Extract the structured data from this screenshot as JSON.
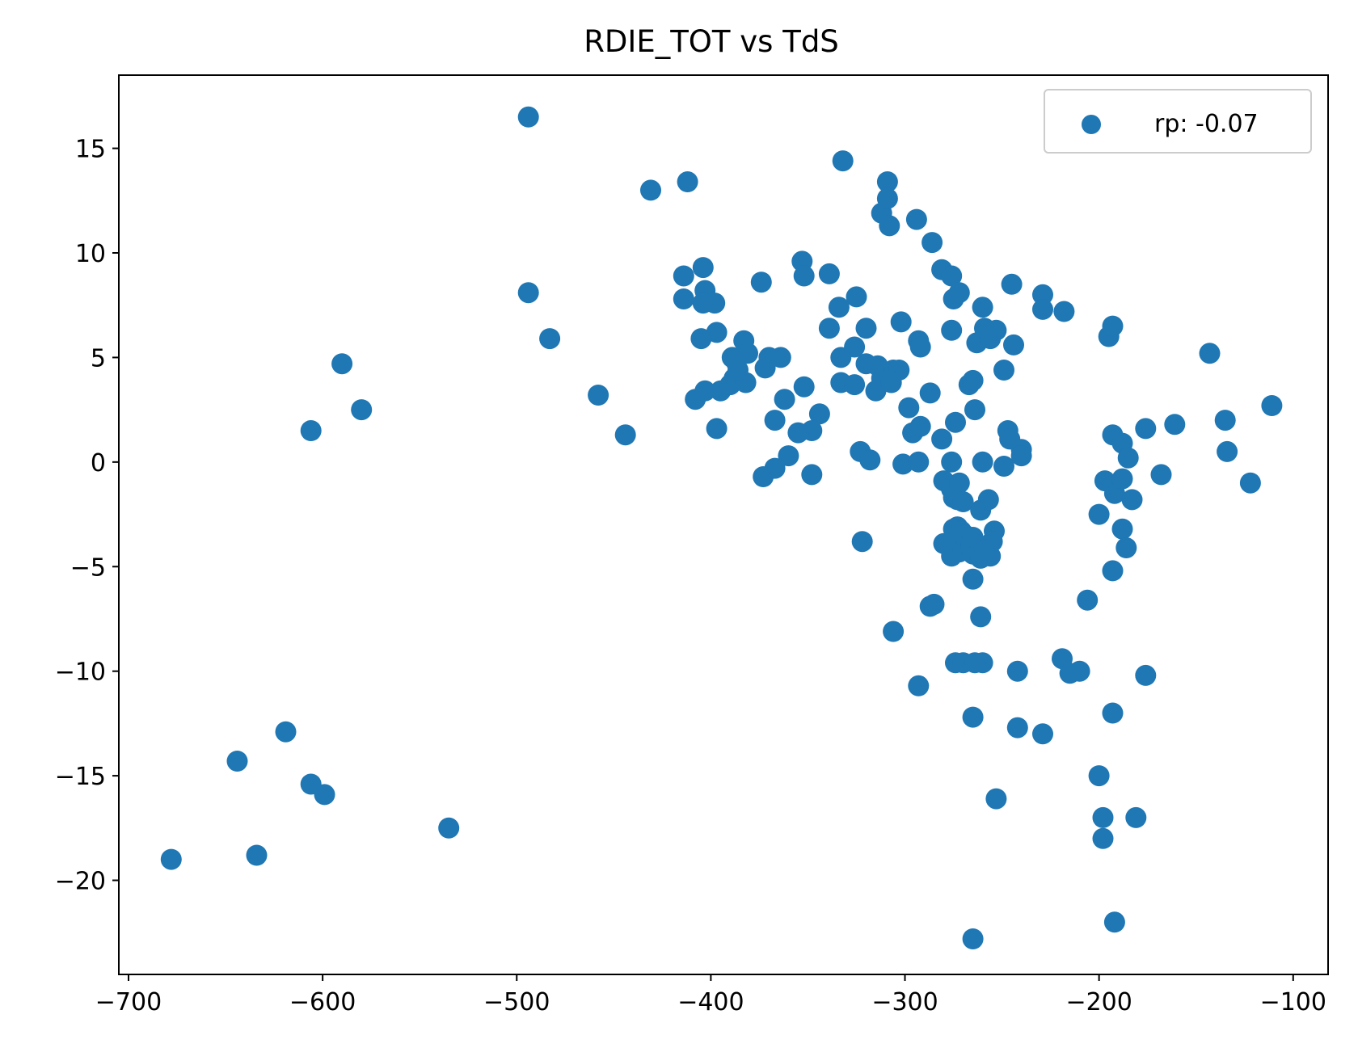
{
  "chart_data": {
    "type": "scatter",
    "title": "RDIE_TOT vs TdS",
    "xlabel": "",
    "ylabel": "",
    "xlim": [
      -705,
      -82
    ],
    "ylim": [
      -24.5,
      18.5
    ],
    "x_ticks": [
      -700,
      -600,
      -500,
      -400,
      -300,
      -200,
      -100
    ],
    "x_tick_labels": [
      "−700",
      "−600",
      "−500",
      "−400",
      "−300",
      "−200",
      "−100"
    ],
    "y_ticks": [
      15,
      10,
      5,
      0,
      -5,
      -10,
      -15,
      -20
    ],
    "y_tick_labels": [
      "15",
      "10",
      "5",
      "0",
      "−5",
      "−10",
      "−15",
      "−20"
    ],
    "grid": false,
    "legend_position": "top-right",
    "marker_color": "#1f77b4",
    "series": [
      {
        "name": "rp: -0.07",
        "points": [
          [
            -678,
            -19.0
          ],
          [
            -644,
            -14.3
          ],
          [
            -634,
            -18.8
          ],
          [
            -619,
            -12.9
          ],
          [
            -606,
            -15.4
          ],
          [
            -599,
            -15.9
          ],
          [
            -606,
            1.5
          ],
          [
            -590,
            4.7
          ],
          [
            -580,
            2.5
          ],
          [
            -535,
            -17.5
          ],
          [
            -494,
            16.5
          ],
          [
            -494,
            8.1
          ],
          [
            -483,
            5.9
          ],
          [
            -458,
            3.2
          ],
          [
            -444,
            1.3
          ],
          [
            -431,
            13.0
          ],
          [
            -412,
            13.4
          ],
          [
            -414,
            8.9
          ],
          [
            -414,
            7.8
          ],
          [
            -404,
            9.3
          ],
          [
            -403,
            8.2
          ],
          [
            -398,
            7.6
          ],
          [
            -404,
            7.6
          ],
          [
            -397,
            6.2
          ],
          [
            -405,
            5.9
          ],
          [
            -408,
            3.0
          ],
          [
            -403,
            3.4
          ],
          [
            -397,
            1.6
          ],
          [
            -395,
            3.4
          ],
          [
            -387,
            4.8
          ],
          [
            -383,
            5.8
          ],
          [
            -381,
            5.2
          ],
          [
            -388,
            4.0
          ],
          [
            -390,
            3.7
          ],
          [
            -382,
            3.8
          ],
          [
            -386,
            4.4
          ],
          [
            -389,
            5.0
          ],
          [
            -374,
            8.6
          ],
          [
            -372,
            4.5
          ],
          [
            -370,
            5.0
          ],
          [
            -367,
            2.0
          ],
          [
            -364,
            5.0
          ],
          [
            -362,
            3.0
          ],
          [
            -360,
            0.3
          ],
          [
            -367,
            -0.3
          ],
          [
            -373,
            -0.7
          ],
          [
            -353,
            9.6
          ],
          [
            -352,
            8.9
          ],
          [
            -352,
            3.6
          ],
          [
            -344,
            2.3
          ],
          [
            -348,
            1.5
          ],
          [
            -355,
            1.4
          ],
          [
            -348,
            -0.6
          ],
          [
            -339,
            9.0
          ],
          [
            -339,
            6.4
          ],
          [
            -334,
            7.4
          ],
          [
            -333,
            5.0
          ],
          [
            -333,
            3.8
          ],
          [
            -332,
            14.4
          ],
          [
            -325,
            7.9
          ],
          [
            -326,
            5.5
          ],
          [
            -326,
            3.7
          ],
          [
            -320,
            6.4
          ],
          [
            -320,
            4.7
          ],
          [
            -323,
            0.5
          ],
          [
            -318,
            0.1
          ],
          [
            -322,
            -3.8
          ],
          [
            -315,
            3.4
          ],
          [
            -314,
            4.6
          ],
          [
            -312,
            4.0
          ],
          [
            -306,
            4.4
          ],
          [
            -303,
            4.4
          ],
          [
            -307,
            3.8
          ],
          [
            -302,
            6.7
          ],
          [
            -301,
            -0.1
          ],
          [
            -312,
            11.9
          ],
          [
            -309,
            13.4
          ],
          [
            -309,
            12.6
          ],
          [
            -308,
            11.3
          ],
          [
            -306,
            -8.1
          ],
          [
            -294,
            11.6
          ],
          [
            -298,
            2.6
          ],
          [
            -296,
            1.4
          ],
          [
            -292,
            1.7
          ],
          [
            -293,
            0.0
          ],
          [
            -293,
            5.8
          ],
          [
            -292,
            5.5
          ],
          [
            -287,
            3.3
          ],
          [
            -286,
            10.5
          ],
          [
            -287,
            -6.9
          ],
          [
            -285,
            -6.8
          ],
          [
            -293,
            -10.7
          ],
          [
            -281,
            9.2
          ],
          [
            -281,
            1.1
          ],
          [
            -280,
            -0.9
          ],
          [
            -280,
            -3.9
          ],
          [
            -276,
            8.9
          ],
          [
            -276,
            6.3
          ],
          [
            -275,
            7.8
          ],
          [
            -272,
            8.1
          ],
          [
            -274,
            1.9
          ],
          [
            -276,
            0.0
          ],
          [
            -276,
            -1.3
          ],
          [
            -275,
            -1.7
          ],
          [
            -273,
            -1.8
          ],
          [
            -272,
            -1.0
          ],
          [
            -270,
            -1.9
          ],
          [
            -273,
            -3.1
          ],
          [
            -275,
            -3.2
          ],
          [
            -276,
            -4.5
          ],
          [
            -274,
            -3.8
          ],
          [
            -272,
            -4.3
          ],
          [
            -271,
            -3.3
          ],
          [
            -269,
            -3.5
          ],
          [
            -270,
            -4.2
          ],
          [
            -268,
            -3.9
          ],
          [
            -274,
            -9.6
          ],
          [
            -270,
            -9.6
          ],
          [
            -267,
            3.7
          ],
          [
            -265,
            3.9
          ],
          [
            -264,
            2.5
          ],
          [
            -263,
            5.7
          ],
          [
            -265,
            -4.4
          ],
          [
            -266,
            -4.0
          ],
          [
            -265,
            -3.6
          ],
          [
            -265,
            -5.6
          ],
          [
            -264,
            -9.6
          ],
          [
            -265,
            -12.2
          ],
          [
            -265,
            -22.8
          ],
          [
            -260,
            7.4
          ],
          [
            -259,
            6.4
          ],
          [
            -260,
            0.0
          ],
          [
            -261,
            -2.3
          ],
          [
            -261,
            -7.4
          ],
          [
            -260,
            -9.6
          ],
          [
            -261,
            -4.6
          ],
          [
            -257,
            -1.8
          ],
          [
            -256,
            5.9
          ],
          [
            -253,
            6.3
          ],
          [
            -254,
            -3.3
          ],
          [
            -255,
            -3.8
          ],
          [
            -256,
            -4.5
          ],
          [
            -257,
            -4.0
          ],
          [
            -259,
            -4.2
          ],
          [
            -253,
            -16.1
          ],
          [
            -249,
            4.4
          ],
          [
            -249,
            -0.2
          ],
          [
            -247,
            1.5
          ],
          [
            -246,
            1.1
          ],
          [
            -245,
            8.5
          ],
          [
            -244,
            5.6
          ],
          [
            -240,
            0.6
          ],
          [
            -240,
            0.3
          ],
          [
            -242,
            -10.0
          ],
          [
            -242,
            -12.7
          ],
          [
            -229,
            8.0
          ],
          [
            -229,
            7.3
          ],
          [
            -229,
            -13.0
          ],
          [
            -218,
            7.2
          ],
          [
            -219,
            -9.4
          ],
          [
            -215,
            -10.1
          ],
          [
            -210,
            -10.0
          ],
          [
            -206,
            -6.6
          ],
          [
            -200,
            -2.5
          ],
          [
            -200,
            -15.0
          ],
          [
            -198,
            -17.0
          ],
          [
            -198,
            -18.0
          ],
          [
            -197,
            -0.9
          ],
          [
            -195,
            6.0
          ],
          [
            -193,
            6.5
          ],
          [
            -193,
            1.3
          ],
          [
            -192,
            -1.5
          ],
          [
            -193,
            -5.2
          ],
          [
            -193,
            -12.0
          ],
          [
            -192,
            -22.0
          ],
          [
            -188,
            0.9
          ],
          [
            -188,
            -0.8
          ],
          [
            -188,
            -3.2
          ],
          [
            -186,
            -4.1
          ],
          [
            -185,
            0.2
          ],
          [
            -183,
            -1.8
          ],
          [
            -181,
            -17.0
          ],
          [
            -176,
            1.6
          ],
          [
            -176,
            -10.2
          ],
          [
            -168,
            -0.6
          ],
          [
            -161,
            1.8
          ],
          [
            -143,
            5.2
          ],
          [
            -135,
            2.0
          ],
          [
            -134,
            0.5
          ],
          [
            -122,
            -1.0
          ],
          [
            -111,
            2.7
          ]
        ]
      }
    ]
  }
}
